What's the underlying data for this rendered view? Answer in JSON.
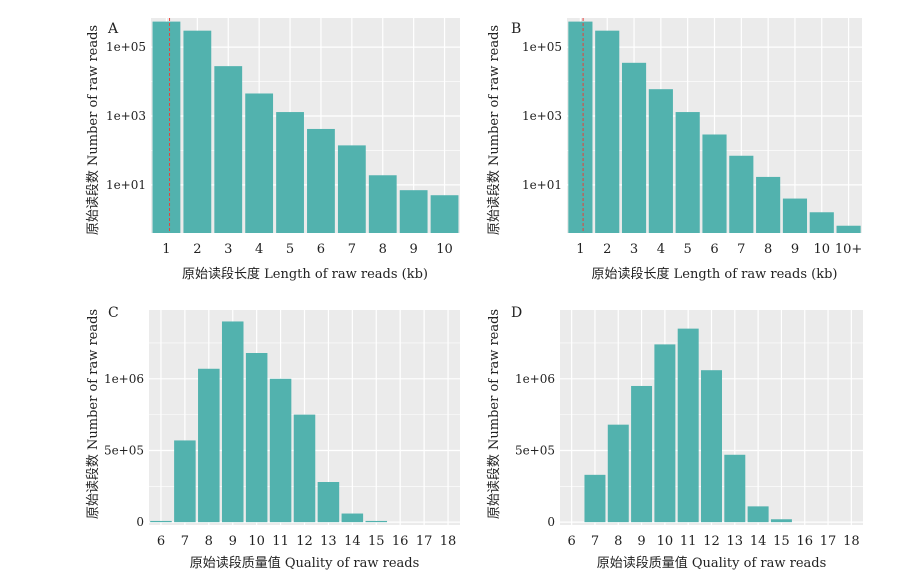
{
  "colors": {
    "bar": "#52B2AE",
    "panel_bg": "#EBEBEB",
    "grid": "#FFFFFF",
    "vline": "#E8413C"
  },
  "chart_data": [
    {
      "type": "bar",
      "panel_label": "A",
      "xlabel": "原始读段长度  Length of raw reads (kb)",
      "ylabel": "原始读段数  Number of raw reads",
      "y_scale": "log10",
      "categories": [
        "1",
        "2",
        "3",
        "4",
        "5",
        "6",
        "7",
        "8",
        "9",
        "10"
      ],
      "values": [
        550000,
        300000,
        28000,
        4500,
        1300,
        420,
        140,
        19,
        7,
        5
      ],
      "ytick_labels": [
        "1e+01",
        "1e+03",
        "1e+05"
      ],
      "ytick_values": [
        10,
        1000,
        100000
      ],
      "ylim": [
        0.4,
        700000
      ],
      "reference_line_x": 1.1,
      "grid": true
    },
    {
      "type": "bar",
      "panel_label": "B",
      "xlabel": "原始读段长度  Length of raw reads (kb)",
      "ylabel": "原始读段数  Number of raw reads",
      "y_scale": "log10",
      "categories": [
        "1",
        "2",
        "3",
        "4",
        "5",
        "6",
        "7",
        "8",
        "9",
        "10",
        "10+"
      ],
      "values": [
        550000,
        300000,
        35000,
        6000,
        1300,
        290,
        70,
        17,
        4,
        1.6,
        0.65
      ],
      "ytick_labels": [
        "1e+01",
        "1e+03",
        "1e+05"
      ],
      "ytick_values": [
        10,
        1000,
        100000
      ],
      "ylim": [
        0.4,
        700000
      ],
      "reference_line_x": 1.1,
      "grid": true
    },
    {
      "type": "bar",
      "panel_label": "C",
      "xlabel": "原始读段质量值  Quality of raw reads",
      "ylabel": "原始读段数  Number of raw reads",
      "y_scale": "linear",
      "categories": [
        "6",
        "7",
        "8",
        "9",
        "10",
        "11",
        "12",
        "13",
        "14",
        "15",
        "16",
        "17",
        "18"
      ],
      "values": [
        5000,
        570000,
        1070000,
        1400000,
        1180000,
        1000000,
        750000,
        280000,
        60000,
        8000,
        0,
        0,
        0
      ],
      "ytick_labels": [
        "0",
        "5e+05",
        "1e+06"
      ],
      "ytick_values": [
        0,
        500000,
        1000000
      ],
      "ylim": [
        -20000,
        1480000
      ],
      "grid": true
    },
    {
      "type": "bar",
      "panel_label": "D",
      "xlabel": "原始读段质量值  Quality of raw reads",
      "ylabel": "原始读段数  Number of raw reads",
      "y_scale": "linear",
      "categories": [
        "6",
        "7",
        "8",
        "9",
        "10",
        "11",
        "12",
        "13",
        "14",
        "15",
        "16",
        "17",
        "18"
      ],
      "values": [
        0,
        330000,
        680000,
        950000,
        1240000,
        1350000,
        1060000,
        470000,
        110000,
        20000,
        0,
        0,
        0
      ],
      "ytick_labels": [
        "0",
        "5e+05",
        "1e+06"
      ],
      "ytick_values": [
        0,
        500000,
        1000000
      ],
      "ylim": [
        -20000,
        1480000
      ],
      "grid": true
    }
  ]
}
